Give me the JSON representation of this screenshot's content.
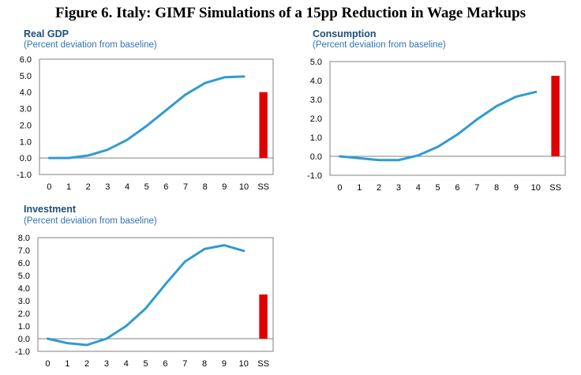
{
  "figure_title": "Figure 6. Italy: GIMF Simulations of a 15pp Reduction in Wage Markups",
  "colors": {
    "line": "#2f9bd3",
    "bar": "#e00000",
    "title": "#1f4e79",
    "subtitle": "#2e75b6",
    "axis": "#808080"
  },
  "chart_data": [
    {
      "type": "line",
      "title": "Real GDP",
      "subtitle": "(Percent deviation from baseline)",
      "categories": [
        "0",
        "1",
        "2",
        "3",
        "4",
        "5",
        "6",
        "7",
        "8",
        "9",
        "10",
        "SS"
      ],
      "series": [
        {
          "name": "Real GDP",
          "x": [
            0,
            1,
            2,
            3,
            4,
            5,
            6,
            7,
            8,
            9,
            10
          ],
          "values": [
            0.0,
            0.0,
            0.15,
            0.5,
            1.1,
            1.95,
            2.9,
            3.85,
            4.55,
            4.9,
            4.95
          ]
        }
      ],
      "steady_state": {
        "label": "SS",
        "value": 4.0
      },
      "yticks": [
        "6.0",
        "5.0",
        "4.0",
        "3.0",
        "2.0",
        "1.0",
        "0.0",
        "-1.0"
      ],
      "ylim": [
        -1.0,
        6.0
      ]
    },
    {
      "type": "line",
      "title": "Consumption",
      "subtitle": "(Percent deviation from baseline)",
      "categories": [
        "0",
        "1",
        "2",
        "3",
        "4",
        "5",
        "6",
        "7",
        "8",
        "9",
        "10",
        "SS"
      ],
      "series": [
        {
          "name": "Consumption",
          "x": [
            0,
            1,
            2,
            3,
            4,
            5,
            6,
            7,
            8,
            9,
            10
          ],
          "values": [
            0.0,
            -0.1,
            -0.2,
            -0.2,
            0.05,
            0.5,
            1.15,
            1.95,
            2.65,
            3.15,
            3.4
          ]
        }
      ],
      "steady_state": {
        "label": "SS",
        "value": 4.25
      },
      "yticks": [
        "5.0",
        "4.0",
        "3.0",
        "2.0",
        "1.0",
        "0.0",
        "-1.0"
      ],
      "ylim": [
        -1.0,
        5.0
      ]
    },
    {
      "type": "line",
      "title": "Investment",
      "subtitle": "(Percent deviation from baseline)",
      "categories": [
        "0",
        "1",
        "2",
        "3",
        "4",
        "5",
        "6",
        "7",
        "8",
        "9",
        "10",
        "SS"
      ],
      "series": [
        {
          "name": "Investment",
          "x": [
            0,
            1,
            2,
            3,
            4,
            5,
            6,
            7,
            8,
            9,
            10
          ],
          "values": [
            0.0,
            -0.35,
            -0.5,
            0.0,
            1.0,
            2.4,
            4.3,
            6.1,
            7.1,
            7.4,
            6.95
          ]
        }
      ],
      "steady_state": {
        "label": "SS",
        "value": 3.5
      },
      "yticks": [
        "8.0",
        "7.0",
        "6.0",
        "5.0",
        "4.0",
        "3.0",
        "2.0",
        "1.0",
        "0.0",
        "-1.0"
      ],
      "ylim": [
        -1.0,
        8.0
      ]
    }
  ]
}
